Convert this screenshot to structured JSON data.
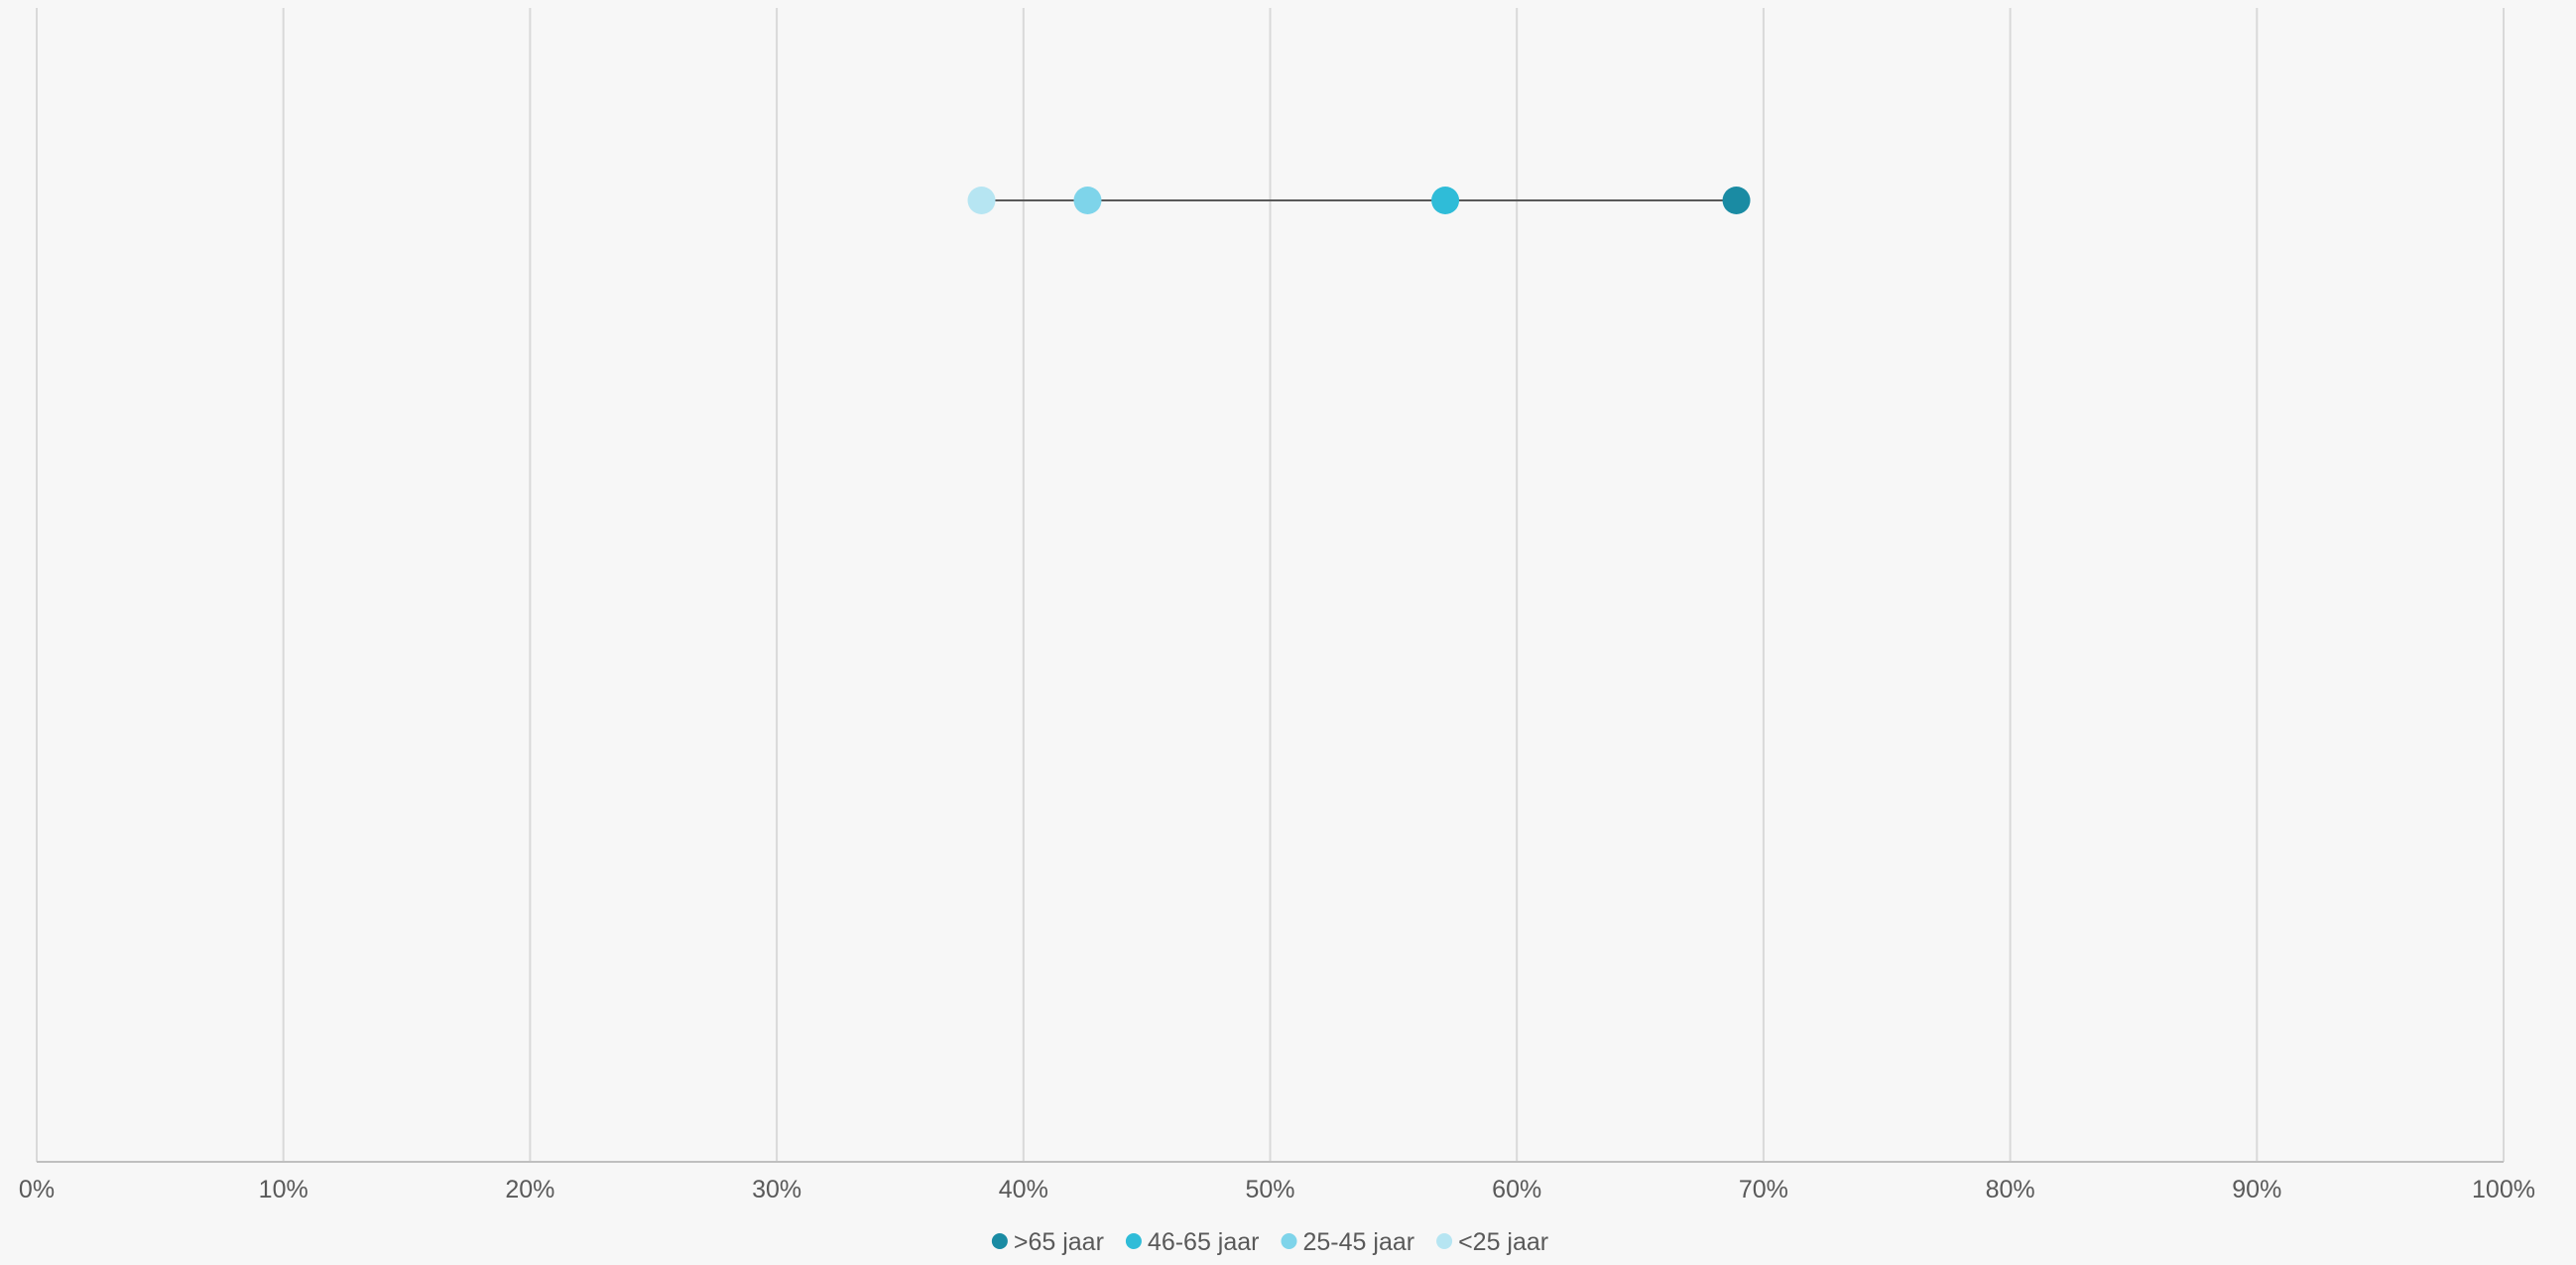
{
  "chart_data": {
    "type": "scatter",
    "subtype": "dot-plot",
    "title": "",
    "xlabel": "",
    "ylabel": "",
    "xlim": [
      0,
      100
    ],
    "x_unit": "%",
    "x_ticks": [
      "0%",
      "10%",
      "20%",
      "30%",
      "40%",
      "50%",
      "60%",
      "70%",
      "80%",
      "90%",
      "100%"
    ],
    "grid": "vertical",
    "legend_position": "bottom",
    "connector_color": "#595959",
    "series": [
      {
        "name": ">65 jaar",
        "color": "#1a8ba3",
        "values": [
          68.9
        ]
      },
      {
        "name": "46-65 jaar",
        "color": "#2fbcd8",
        "values": [
          57.1
        ]
      },
      {
        "name": "25-45 jaar",
        "color": "#7ed4ea",
        "values": [
          42.6
        ]
      },
      {
        "name": "<25 jaar",
        "color": "#b6e5f2",
        "values": [
          38.3
        ]
      }
    ]
  }
}
